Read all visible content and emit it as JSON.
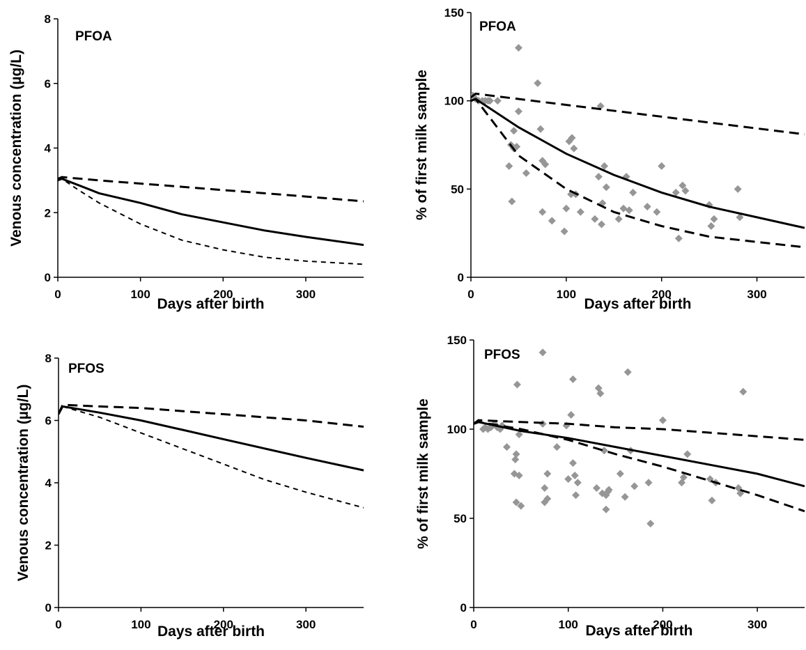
{
  "chart_data": [
    {
      "type": "line",
      "title": "PFOA",
      "xlabel": "Days after birth",
      "ylabel": "Venous concentration (µg/L)",
      "xlim": [
        0,
        370
      ],
      "ylim": [
        0,
        8
      ],
      "xticks": [
        0,
        100,
        200,
        300
      ],
      "yticks": [
        0,
        2,
        4,
        6,
        8
      ],
      "grid": false,
      "series": [
        {
          "style": "solid",
          "x": [
            0,
            5,
            25,
            50,
            100,
            150,
            200,
            250,
            300,
            370
          ],
          "y": [
            3.0,
            3.05,
            2.85,
            2.6,
            2.3,
            1.95,
            1.7,
            1.45,
            1.25,
            1.0
          ]
        },
        {
          "style": "long-dash",
          "x": [
            0,
            5,
            50,
            100,
            150,
            200,
            250,
            300,
            370
          ],
          "y": [
            3.05,
            3.1,
            3.0,
            2.9,
            2.8,
            2.7,
            2.6,
            2.5,
            2.35
          ]
        },
        {
          "style": "short-dash",
          "x": [
            0,
            5,
            25,
            50,
            100,
            150,
            200,
            250,
            300,
            370
          ],
          "y": [
            3.0,
            3.05,
            2.7,
            2.3,
            1.65,
            1.15,
            0.85,
            0.62,
            0.5,
            0.4
          ]
        }
      ]
    },
    {
      "type": "scatter",
      "title": "PFOA",
      "xlabel": "Days after birth",
      "ylabel": "% of first milk sample",
      "xlim": [
        0,
        350
      ],
      "ylim": [
        0,
        150
      ],
      "xticks": [
        0,
        100,
        200,
        300
      ],
      "yticks": [
        0,
        50,
        100,
        150
      ],
      "grid": false,
      "points": {
        "x": [
          2,
          5,
          8,
          12,
          15,
          18,
          20,
          28,
          40,
          42,
          43,
          45,
          45,
          48,
          50,
          50,
          58,
          70,
          73,
          75,
          75,
          78,
          85,
          98,
          100,
          103,
          105,
          106,
          108,
          110,
          115,
          130,
          134,
          136,
          137,
          138,
          140,
          142,
          155,
          160,
          163,
          166,
          170,
          185,
          195,
          200,
          215,
          218,
          222,
          225,
          250,
          252,
          255,
          280,
          282
        ],
        "y": [
          103,
          101,
          100,
          100,
          100,
          100,
          100,
          100,
          63,
          75,
          43,
          73,
          83,
          74,
          130,
          94,
          59,
          110,
          84,
          66,
          37,
          64,
          32,
          26,
          39,
          77,
          47,
          79,
          73,
          47,
          37,
          33,
          57,
          97,
          30,
          42,
          63,
          51,
          33,
          39,
          57,
          38,
          48,
          40,
          37,
          63,
          48,
          22,
          52,
          49,
          41,
          29,
          33,
          50,
          34
        ]
      },
      "series": [
        {
          "style": "solid",
          "x": [
            0,
            5,
            50,
            100,
            150,
            200,
            250,
            300,
            350
          ],
          "y": [
            100,
            101,
            85,
            70,
            58,
            48,
            40,
            34,
            28
          ]
        },
        {
          "style": "long-dash",
          "x": [
            0,
            5,
            350
          ],
          "y": [
            102,
            104,
            81
          ]
        },
        {
          "style": "long-dash",
          "x": [
            0,
            5,
            50,
            100,
            150,
            200,
            250,
            300,
            350
          ],
          "y": [
            100,
            101,
            69,
            50,
            37,
            29,
            23,
            20,
            17
          ]
        }
      ]
    },
    {
      "type": "line",
      "title": "PFOS",
      "xlabel": "Days after birth",
      "ylabel": "Venous concentration (µg/L)",
      "xlim": [
        0,
        370
      ],
      "ylim": [
        0,
        8
      ],
      "xticks": [
        0,
        100,
        200,
        300
      ],
      "yticks": [
        0,
        2,
        4,
        6,
        8
      ],
      "grid": false,
      "series": [
        {
          "style": "solid",
          "x": [
            0,
            5,
            50,
            100,
            150,
            200,
            250,
            300,
            370
          ],
          "y": [
            6.2,
            6.45,
            6.25,
            6.0,
            5.7,
            5.4,
            5.1,
            4.8,
            4.4
          ]
        },
        {
          "style": "long-dash",
          "x": [
            0,
            5,
            50,
            100,
            150,
            200,
            250,
            300,
            370
          ],
          "y": [
            6.2,
            6.5,
            6.45,
            6.4,
            6.3,
            6.2,
            6.1,
            6.0,
            5.8
          ]
        },
        {
          "style": "short-dash",
          "x": [
            0,
            5,
            50,
            100,
            150,
            200,
            250,
            300,
            370
          ],
          "y": [
            6.2,
            6.45,
            6.1,
            5.6,
            5.1,
            4.6,
            4.1,
            3.7,
            3.2
          ]
        }
      ]
    },
    {
      "type": "scatter",
      "title": "PFOS",
      "xlabel": "Days after birth",
      "ylabel": "% of first milk sample",
      "xlim": [
        0,
        350
      ],
      "ylim": [
        0,
        150
      ],
      "xticks": [
        0,
        100,
        200,
        300
      ],
      "yticks": [
        0,
        50,
        100,
        150
      ],
      "grid": false,
      "points": {
        "x": [
          10,
          12,
          15,
          18,
          20,
          22,
          25,
          28,
          30,
          35,
          43,
          44,
          45,
          45,
          46,
          48,
          48,
          50,
          73,
          73,
          75,
          75,
          78,
          78,
          88,
          98,
          100,
          103,
          105,
          105,
          107,
          108,
          110,
          130,
          132,
          134,
          136,
          138,
          140,
          140,
          142,
          143,
          155,
          160,
          163,
          166,
          170,
          185,
          187,
          200,
          220,
          222,
          226,
          250,
          252,
          256,
          280,
          282,
          285
        ],
        "y": [
          100,
          101,
          100,
          101,
          102,
          103,
          101,
          100,
          102,
          90,
          75,
          83,
          86,
          59,
          125,
          97,
          74,
          57,
          143,
          103,
          67,
          59,
          75,
          61,
          90,
          102,
          72,
          108,
          128,
          81,
          74,
          63,
          70,
          67,
          123,
          120,
          64,
          88,
          63,
          55,
          65,
          66,
          75,
          62,
          132,
          88,
          68,
          70,
          47,
          105,
          70,
          73,
          86,
          72,
          60,
          70,
          67,
          64,
          121
        ]
      },
      "series": [
        {
          "style": "solid",
          "x": [
            0,
            5,
            50,
            100,
            150,
            200,
            250,
            300,
            350
          ],
          "y": [
            103,
            104,
            99,
            95,
            90,
            85,
            80,
            75,
            68
          ]
        },
        {
          "style": "long-dash",
          "x": [
            0,
            5,
            50,
            100,
            150,
            200,
            250,
            300,
            350
          ],
          "y": [
            103,
            105,
            104,
            103,
            101,
            100,
            98,
            96,
            94
          ]
        },
        {
          "style": "long-dash",
          "x": [
            0,
            5,
            50,
            100,
            150,
            200,
            250,
            300,
            350
          ],
          "y": [
            103,
            104,
            100,
            94,
            86,
            79,
            71,
            63,
            54
          ]
        }
      ]
    }
  ]
}
